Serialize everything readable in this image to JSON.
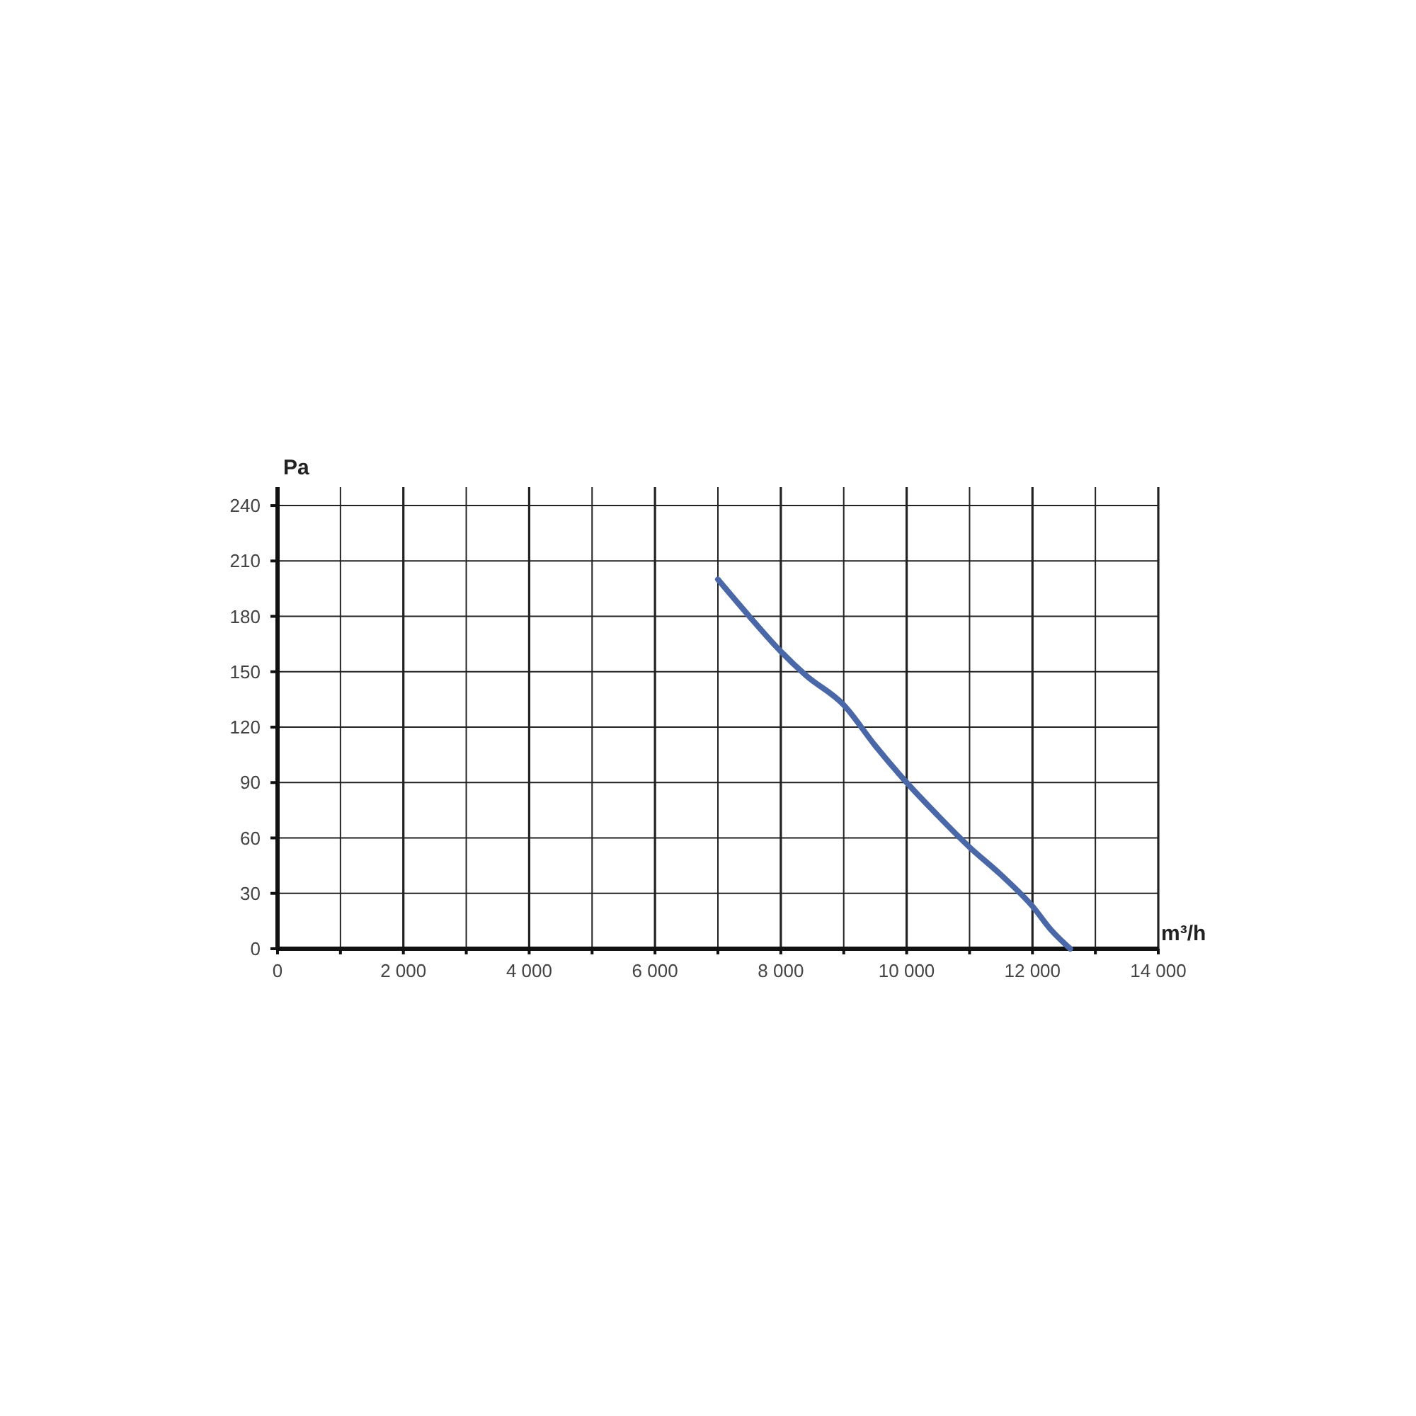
{
  "chart_data": {
    "type": "line",
    "xlabel": "m³/h",
    "ylabel": "Pa",
    "x": [
      7000,
      7500,
      8000,
      8400,
      9000,
      9500,
      10000,
      10500,
      11000,
      11500,
      12000,
      12300,
      12600
    ],
    "series": [
      {
        "color": "#4a68a8",
        "values": [
          200,
          180,
          161,
          148,
          132,
          110,
          90,
          72,
          55,
          40,
          23,
          10,
          0
        ]
      }
    ],
    "xlim": [
      0,
      14000
    ],
    "ylim": [
      0,
      250
    ],
    "xticks": [
      {
        "value": 0,
        "label": "0"
      },
      {
        "value": 1000,
        "label": null
      },
      {
        "value": 2000,
        "label": "2 000"
      },
      {
        "value": 3000,
        "label": null
      },
      {
        "value": 4000,
        "label": "4 000"
      },
      {
        "value": 5000,
        "label": null
      },
      {
        "value": 6000,
        "label": "6 000"
      },
      {
        "value": 7000,
        "label": null
      },
      {
        "value": 8000,
        "label": "8 000"
      },
      {
        "value": 9000,
        "label": null
      },
      {
        "value": 10000,
        "label": "10 000"
      },
      {
        "value": 11000,
        "label": null
      },
      {
        "value": 12000,
        "label": "12 000"
      },
      {
        "value": 13000,
        "label": null
      },
      {
        "value": 14000,
        "label": "14 000"
      }
    ],
    "yticks": [
      0,
      30,
      60,
      90,
      120,
      150,
      180,
      210,
      240
    ],
    "grid": true,
    "marker": "none",
    "line_style": "solid"
  }
}
